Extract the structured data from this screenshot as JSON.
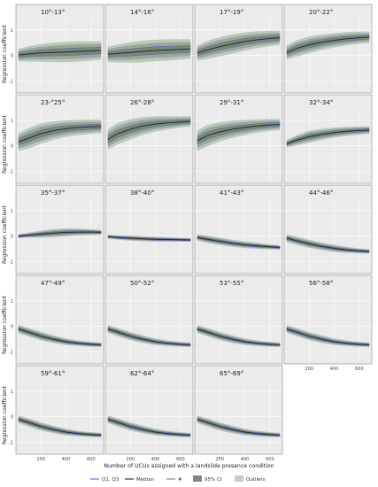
{
  "chart_data": {
    "type": "line",
    "ylabel": "Regression coefficient",
    "xlabel": "Number of UCUs assigned with a landslide presence condition",
    "xlim": [
      0,
      700
    ],
    "ylim": [
      -1.4,
      1.45
    ],
    "xticks": [
      200,
      400,
      600
    ],
    "yticks": [
      -1,
      0,
      1
    ],
    "grid": true,
    "legend_position": "bottom",
    "legend": [
      {
        "label": "Q1, Q3",
        "color": "#6a6ad8",
        "kind": "line"
      },
      {
        "label": "Median",
        "color": "#333333",
        "kind": "line"
      },
      {
        "label": "#",
        "color": "#8a8a8a",
        "kind": "line"
      },
      {
        "label": "95% CI",
        "color": "#7a8a7a",
        "kind": "box"
      },
      {
        "label": "Outliers",
        "color": "#c4ccc4",
        "kind": "box"
      }
    ],
    "panels": [
      {
        "title": "10°-13°",
        "x": [
          20,
          100,
          200,
          300,
          400,
          500,
          600,
          680
        ],
        "median": [
          0.02,
          0.06,
          0.1,
          0.12,
          0.14,
          0.16,
          0.18,
          0.2
        ],
        "spread": [
          0.25,
          0.3,
          0.35,
          0.38,
          0.4,
          0.4,
          0.38,
          0.36
        ]
      },
      {
        "title": "14°-16°",
        "x": [
          20,
          100,
          200,
          300,
          400,
          500,
          600,
          680
        ],
        "median": [
          0.05,
          0.08,
          0.12,
          0.16,
          0.2,
          0.22,
          0.24,
          0.26
        ],
        "spread": [
          0.3,
          0.35,
          0.4,
          0.42,
          0.42,
          0.42,
          0.4,
          0.38
        ]
      },
      {
        "title": "17°-19°",
        "x": [
          20,
          100,
          200,
          300,
          400,
          500,
          600,
          680
        ],
        "median": [
          0.1,
          0.22,
          0.35,
          0.45,
          0.55,
          0.62,
          0.67,
          0.7
        ],
        "spread": [
          0.3,
          0.35,
          0.38,
          0.38,
          0.36,
          0.33,
          0.3,
          0.28
        ]
      },
      {
        "title": "20°-22°",
        "x": [
          20,
          100,
          200,
          300,
          400,
          500,
          600,
          680
        ],
        "median": [
          0.12,
          0.28,
          0.42,
          0.52,
          0.6,
          0.66,
          0.7,
          0.72
        ],
        "spread": [
          0.28,
          0.32,
          0.33,
          0.3,
          0.28,
          0.26,
          0.24,
          0.22
        ]
      },
      {
        "title": "23-°25°",
        "x": [
          20,
          100,
          200,
          300,
          400,
          500,
          600,
          680
        ],
        "median": [
          0.15,
          0.3,
          0.48,
          0.6,
          0.68,
          0.72,
          0.75,
          0.76
        ],
        "spread": [
          0.35,
          0.4,
          0.4,
          0.36,
          0.33,
          0.3,
          0.28,
          0.26
        ]
      },
      {
        "title": "26°-28°",
        "x": [
          20,
          100,
          200,
          300,
          400,
          500,
          600,
          680
        ],
        "median": [
          0.25,
          0.48,
          0.65,
          0.78,
          0.86,
          0.9,
          0.94,
          0.96
        ],
        "spread": [
          0.4,
          0.42,
          0.4,
          0.35,
          0.3,
          0.26,
          0.22,
          0.2
        ]
      },
      {
        "title": "29°-31°",
        "x": [
          20,
          100,
          200,
          300,
          400,
          500,
          600,
          680
        ],
        "median": [
          0.2,
          0.4,
          0.55,
          0.65,
          0.72,
          0.78,
          0.82,
          0.84
        ],
        "spread": [
          0.4,
          0.42,
          0.38,
          0.34,
          0.3,
          0.26,
          0.24,
          0.22
        ]
      },
      {
        "title": "32°-34°",
        "x": [
          20,
          100,
          200,
          300,
          400,
          500,
          600,
          680
        ],
        "median": [
          0.08,
          0.22,
          0.36,
          0.45,
          0.52,
          0.57,
          0.6,
          0.62
        ],
        "spread": [
          0.15,
          0.2,
          0.24,
          0.22,
          0.2,
          0.18,
          0.16,
          0.15
        ]
      },
      {
        "title": "35°-37°",
        "x": [
          20,
          100,
          200,
          300,
          400,
          500,
          600,
          680
        ],
        "median": [
          0.0,
          0.04,
          0.08,
          0.12,
          0.15,
          0.16,
          0.16,
          0.15
        ],
        "spread": [
          0.08,
          0.1,
          0.14,
          0.16,
          0.16,
          0.14,
          0.12,
          0.1
        ]
      },
      {
        "title": "38°-40°",
        "x": [
          20,
          100,
          200,
          300,
          400,
          500,
          600,
          680
        ],
        "median": [
          -0.02,
          -0.05,
          -0.08,
          -0.1,
          -0.12,
          -0.13,
          -0.14,
          -0.15
        ],
        "spread": [
          0.08,
          0.09,
          0.1,
          0.1,
          0.1,
          0.09,
          0.08,
          0.08
        ]
      },
      {
        "title": "41°-43°",
        "x": [
          20,
          100,
          200,
          300,
          400,
          500,
          600,
          680
        ],
        "median": [
          -0.05,
          -0.12,
          -0.2,
          -0.28,
          -0.34,
          -0.38,
          -0.42,
          -0.44
        ],
        "spread": [
          0.12,
          0.14,
          0.15,
          0.14,
          0.13,
          0.12,
          0.1,
          0.09
        ]
      },
      {
        "title": "44°-46°",
        "x": [
          20,
          100,
          200,
          300,
          400,
          500,
          600,
          680
        ],
        "median": [
          -0.08,
          -0.18,
          -0.3,
          -0.4,
          -0.48,
          -0.54,
          -0.58,
          -0.6
        ],
        "spread": [
          0.15,
          0.16,
          0.16,
          0.15,
          0.14,
          0.12,
          0.1,
          0.09
        ]
      },
      {
        "title": "47°-49°",
        "x": [
          20,
          100,
          200,
          300,
          400,
          500,
          600,
          680
        ],
        "median": [
          -0.1,
          -0.22,
          -0.38,
          -0.5,
          -0.6,
          -0.66,
          -0.7,
          -0.72
        ],
        "spread": [
          0.16,
          0.17,
          0.17,
          0.15,
          0.13,
          0.11,
          0.1,
          0.09
        ]
      },
      {
        "title": "50°-52°",
        "x": [
          20,
          100,
          200,
          300,
          400,
          500,
          600,
          680
        ],
        "median": [
          -0.1,
          -0.22,
          -0.38,
          -0.5,
          -0.6,
          -0.66,
          -0.7,
          -0.72
        ],
        "spread": [
          0.15,
          0.16,
          0.16,
          0.15,
          0.13,
          0.11,
          0.1,
          0.09
        ]
      },
      {
        "title": "53°-55°",
        "x": [
          20,
          100,
          200,
          300,
          400,
          500,
          600,
          680
        ],
        "median": [
          -0.1,
          -0.22,
          -0.38,
          -0.5,
          -0.6,
          -0.66,
          -0.7,
          -0.72
        ],
        "spread": [
          0.15,
          0.16,
          0.16,
          0.15,
          0.13,
          0.11,
          0.1,
          0.09
        ]
      },
      {
        "title": "56°-58°",
        "x": [
          20,
          100,
          200,
          300,
          400,
          500,
          600,
          680
        ],
        "median": [
          -0.1,
          -0.22,
          -0.38,
          -0.5,
          -0.6,
          -0.66,
          -0.7,
          -0.72
        ],
        "spread": [
          0.15,
          0.16,
          0.16,
          0.15,
          0.13,
          0.11,
          0.1,
          0.09
        ]
      },
      {
        "title": "59°-61°",
        "x": [
          20,
          100,
          200,
          300,
          400,
          500,
          600,
          680
        ],
        "median": [
          -0.1,
          -0.22,
          -0.38,
          -0.5,
          -0.6,
          -0.66,
          -0.7,
          -0.72
        ],
        "spread": [
          0.15,
          0.16,
          0.16,
          0.15,
          0.13,
          0.11,
          0.1,
          0.09
        ]
      },
      {
        "title": "62°-64°",
        "x": [
          20,
          100,
          200,
          300,
          400,
          500,
          600,
          680
        ],
        "median": [
          -0.1,
          -0.22,
          -0.38,
          -0.5,
          -0.6,
          -0.66,
          -0.7,
          -0.72
        ],
        "spread": [
          0.15,
          0.16,
          0.16,
          0.15,
          0.13,
          0.11,
          0.1,
          0.09
        ]
      },
      {
        "title": "65°-69°",
        "x": [
          20,
          100,
          200,
          300,
          400,
          500,
          600,
          680
        ],
        "median": [
          -0.1,
          -0.22,
          -0.38,
          -0.5,
          -0.6,
          -0.66,
          -0.7,
          -0.72
        ],
        "spread": [
          0.15,
          0.16,
          0.16,
          0.15,
          0.13,
          0.11,
          0.1,
          0.09
        ]
      }
    ]
  }
}
